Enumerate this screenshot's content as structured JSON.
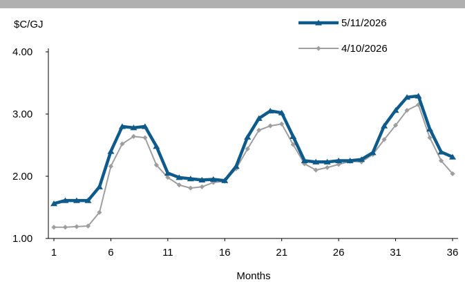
{
  "chart_data": {
    "type": "line",
    "ylabel": "$C/GJ",
    "xlabel": "Months",
    "ylim": [
      1.0,
      4.0
    ],
    "xlim": [
      1,
      36
    ],
    "y_ticks": [
      "4.00",
      "3.00",
      "2.00",
      "1.00"
    ],
    "y_tick_values": [
      4.0,
      3.0,
      2.0,
      1.0
    ],
    "x_ticks": [
      "1",
      "6",
      "11",
      "16",
      "21",
      "26",
      "31",
      "36"
    ],
    "x_tick_values": [
      1,
      6,
      11,
      16,
      21,
      26,
      31,
      36
    ],
    "grid": false,
    "legend_position": "top-right",
    "x": [
      1,
      2,
      3,
      4,
      5,
      6,
      7,
      8,
      9,
      10,
      11,
      12,
      13,
      14,
      15,
      16,
      17,
      18,
      19,
      20,
      21,
      22,
      23,
      24,
      25,
      26,
      27,
      28,
      29,
      30,
      31,
      32,
      33,
      34,
      35,
      36
    ],
    "series": [
      {
        "name": "5/11/2026",
        "color": "#0e5a8a",
        "marker": "triangle",
        "values": [
          1.56,
          1.61,
          1.61,
          1.61,
          1.83,
          2.4,
          2.8,
          2.78,
          2.8,
          2.48,
          2.05,
          1.98,
          1.96,
          1.94,
          1.95,
          1.93,
          2.16,
          2.63,
          2.93,
          3.05,
          3.02,
          2.64,
          2.25,
          2.23,
          2.23,
          2.25,
          2.25,
          2.27,
          2.38,
          2.81,
          3.06,
          3.27,
          3.29,
          2.76,
          2.39,
          2.31
        ]
      },
      {
        "name": "4/10/2026",
        "color": "#9e9e9e",
        "marker": "diamond",
        "values": [
          1.18,
          1.18,
          1.19,
          1.2,
          1.42,
          2.16,
          2.52,
          2.64,
          2.62,
          2.18,
          1.98,
          1.86,
          1.81,
          1.83,
          1.9,
          1.92,
          2.12,
          2.44,
          2.74,
          2.81,
          2.84,
          2.51,
          2.2,
          2.1,
          2.14,
          2.19,
          2.24,
          2.23,
          2.35,
          2.59,
          2.82,
          3.06,
          3.15,
          2.62,
          2.25,
          2.04
        ]
      }
    ]
  }
}
